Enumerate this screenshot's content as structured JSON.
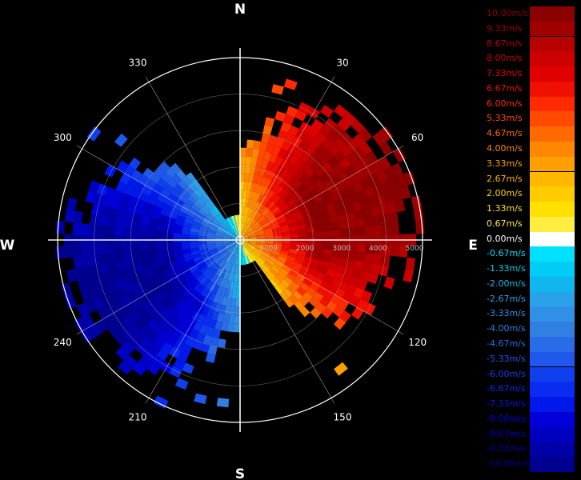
{
  "compass": {
    "north": "N",
    "south": "S",
    "east": "E",
    "west": "W"
  },
  "azimuth_labels": [
    "30",
    "60",
    "120",
    "150",
    "210",
    "240",
    "300",
    "330"
  ],
  "chart_data": {
    "type": "radar-ppi",
    "range_rings": [
      "1000",
      "2000",
      "3000",
      "4000",
      "5000"
    ],
    "max_range": 5000,
    "colorbar": {
      "labels": [
        "10.00m/s",
        "9.33m/s",
        "8.67m/s",
        "8.00m/s",
        "7.33m/s",
        "6.67m/s",
        "6.00m/s",
        "5.33m/s",
        "4.67m/s",
        "4.00m/s",
        "3.33m/s",
        "2.67m/s",
        "2.00m/s",
        "1.33m/s",
        "0.67m/s",
        "0.00m/s",
        "-0.67m/s",
        "-1.33m/s",
        "-2.00m/s",
        "-2.67m/s",
        "-3.33m/s",
        "-4.00m/s",
        "-4.67m/s",
        "-5.33m/s",
        "-6.00m/s",
        "-6.67m/s",
        "-7.33m/s",
        "-8.00m/s",
        "-8.67m/s",
        "-9.33m/s",
        "-10.00m/s"
      ],
      "colors": [
        "#8b0000",
        "#a00000",
        "#b80000",
        "#cc0000",
        "#e00000",
        "#f01000",
        "#ff2a00",
        "#ff4a00",
        "#ff6a00",
        "#ff8800",
        "#ffa000",
        "#ffb800",
        "#ffcc00",
        "#ffe000",
        "#ffee40",
        "#ffffff",
        "#00e0ff",
        "#00ccf5",
        "#10b6ef",
        "#2aa2ea",
        "#3090e8",
        "#3080e4",
        "#2a6ce8",
        "#1f58ea",
        "#1040ee",
        "#0a2cf0",
        "#0018ea",
        "#0000d8",
        "#0000c0",
        "#0000a8",
        "#000090"
      ]
    },
    "wind_field": {
      "max_velocity": 10,
      "approach_direction_deg": 70,
      "recede_direction_deg": 250
    }
  }
}
